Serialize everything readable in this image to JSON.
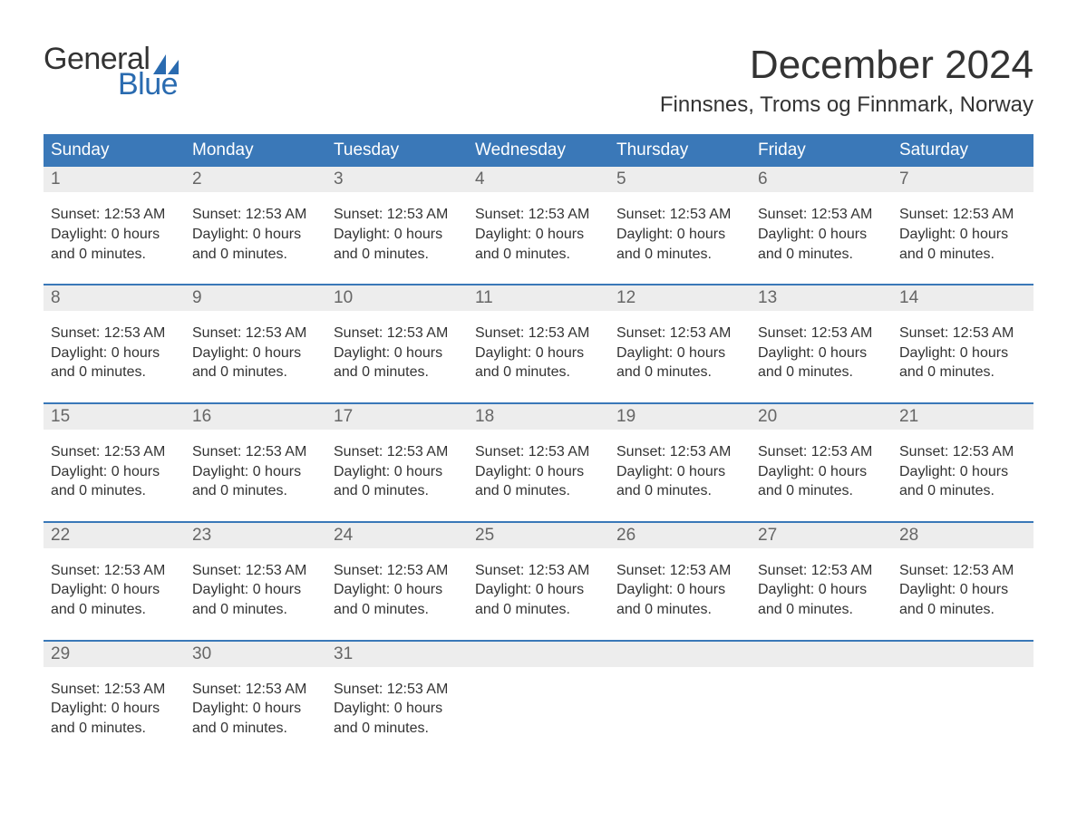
{
  "logo": {
    "text_general": "General",
    "text_blue": "Blue",
    "sail_color": "#2a6bb0",
    "general_color": "#333333",
    "blue_color": "#2a6bb0"
  },
  "header": {
    "title": "December 2024",
    "subtitle": "Finnsnes, Troms og Finnmark, Norway"
  },
  "colors": {
    "weekday_bg": "#3a78b8",
    "weekday_fg": "#ffffff",
    "daynum_bg": "#ededed",
    "daynum_fg": "#666666",
    "week_border": "#3a78b8",
    "text": "#333333",
    "background": "#ffffff"
  },
  "typography": {
    "title_fontsize": 44,
    "subtitle_fontsize": 24,
    "weekday_fontsize": 19,
    "daynum_fontsize": 19,
    "cell_fontsize": 16,
    "font_family": "Arial"
  },
  "calendar": {
    "weekday_labels": [
      "Sunday",
      "Monday",
      "Tuesday",
      "Wednesday",
      "Thursday",
      "Friday",
      "Saturday"
    ],
    "weeks": [
      {
        "days": [
          {
            "num": "1",
            "lines": [
              "Sunset: 12:53 AM",
              "Daylight: 0 hours",
              "and 0 minutes."
            ]
          },
          {
            "num": "2",
            "lines": [
              "Sunset: 12:53 AM",
              "Daylight: 0 hours",
              "and 0 minutes."
            ]
          },
          {
            "num": "3",
            "lines": [
              "Sunset: 12:53 AM",
              "Daylight: 0 hours",
              "and 0 minutes."
            ]
          },
          {
            "num": "4",
            "lines": [
              "Sunset: 12:53 AM",
              "Daylight: 0 hours",
              "and 0 minutes."
            ]
          },
          {
            "num": "5",
            "lines": [
              "Sunset: 12:53 AM",
              "Daylight: 0 hours",
              "and 0 minutes."
            ]
          },
          {
            "num": "6",
            "lines": [
              "Sunset: 12:53 AM",
              "Daylight: 0 hours",
              "and 0 minutes."
            ]
          },
          {
            "num": "7",
            "lines": [
              "Sunset: 12:53 AM",
              "Daylight: 0 hours",
              "and 0 minutes."
            ]
          }
        ]
      },
      {
        "days": [
          {
            "num": "8",
            "lines": [
              "Sunset: 12:53 AM",
              "Daylight: 0 hours",
              "and 0 minutes."
            ]
          },
          {
            "num": "9",
            "lines": [
              "Sunset: 12:53 AM",
              "Daylight: 0 hours",
              "and 0 minutes."
            ]
          },
          {
            "num": "10",
            "lines": [
              "Sunset: 12:53 AM",
              "Daylight: 0 hours",
              "and 0 minutes."
            ]
          },
          {
            "num": "11",
            "lines": [
              "Sunset: 12:53 AM",
              "Daylight: 0 hours",
              "and 0 minutes."
            ]
          },
          {
            "num": "12",
            "lines": [
              "Sunset: 12:53 AM",
              "Daylight: 0 hours",
              "and 0 minutes."
            ]
          },
          {
            "num": "13",
            "lines": [
              "Sunset: 12:53 AM",
              "Daylight: 0 hours",
              "and 0 minutes."
            ]
          },
          {
            "num": "14",
            "lines": [
              "Sunset: 12:53 AM",
              "Daylight: 0 hours",
              "and 0 minutes."
            ]
          }
        ]
      },
      {
        "days": [
          {
            "num": "15",
            "lines": [
              "Sunset: 12:53 AM",
              "Daylight: 0 hours",
              "and 0 minutes."
            ]
          },
          {
            "num": "16",
            "lines": [
              "Sunset: 12:53 AM",
              "Daylight: 0 hours",
              "and 0 minutes."
            ]
          },
          {
            "num": "17",
            "lines": [
              "Sunset: 12:53 AM",
              "Daylight: 0 hours",
              "and 0 minutes."
            ]
          },
          {
            "num": "18",
            "lines": [
              "Sunset: 12:53 AM",
              "Daylight: 0 hours",
              "and 0 minutes."
            ]
          },
          {
            "num": "19",
            "lines": [
              "Sunset: 12:53 AM",
              "Daylight: 0 hours",
              "and 0 minutes."
            ]
          },
          {
            "num": "20",
            "lines": [
              "Sunset: 12:53 AM",
              "Daylight: 0 hours",
              "and 0 minutes."
            ]
          },
          {
            "num": "21",
            "lines": [
              "Sunset: 12:53 AM",
              "Daylight: 0 hours",
              "and 0 minutes."
            ]
          }
        ]
      },
      {
        "days": [
          {
            "num": "22",
            "lines": [
              "Sunset: 12:53 AM",
              "Daylight: 0 hours",
              "and 0 minutes."
            ]
          },
          {
            "num": "23",
            "lines": [
              "Sunset: 12:53 AM",
              "Daylight: 0 hours",
              "and 0 minutes."
            ]
          },
          {
            "num": "24",
            "lines": [
              "Sunset: 12:53 AM",
              "Daylight: 0 hours",
              "and 0 minutes."
            ]
          },
          {
            "num": "25",
            "lines": [
              "Sunset: 12:53 AM",
              "Daylight: 0 hours",
              "and 0 minutes."
            ]
          },
          {
            "num": "26",
            "lines": [
              "Sunset: 12:53 AM",
              "Daylight: 0 hours",
              "and 0 minutes."
            ]
          },
          {
            "num": "27",
            "lines": [
              "Sunset: 12:53 AM",
              "Daylight: 0 hours",
              "and 0 minutes."
            ]
          },
          {
            "num": "28",
            "lines": [
              "Sunset: 12:53 AM",
              "Daylight: 0 hours",
              "and 0 minutes."
            ]
          }
        ]
      },
      {
        "days": [
          {
            "num": "29",
            "lines": [
              "Sunset: 12:53 AM",
              "Daylight: 0 hours",
              "and 0 minutes."
            ]
          },
          {
            "num": "30",
            "lines": [
              "Sunset: 12:53 AM",
              "Daylight: 0 hours",
              "and 0 minutes."
            ]
          },
          {
            "num": "31",
            "lines": [
              "Sunset: 12:53 AM",
              "Daylight: 0 hours",
              "and 0 minutes."
            ]
          },
          {
            "num": "",
            "lines": []
          },
          {
            "num": "",
            "lines": []
          },
          {
            "num": "",
            "lines": []
          },
          {
            "num": "",
            "lines": []
          }
        ]
      }
    ]
  }
}
